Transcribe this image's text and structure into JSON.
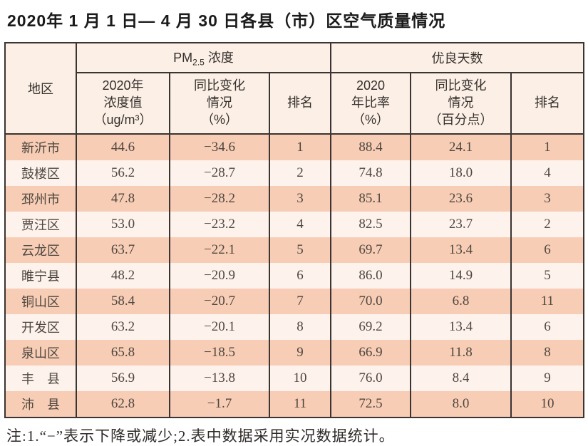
{
  "title": "2020年 1 月 1 日— 4 月 30 日各县（市）区空气质量情况",
  "table": {
    "header": {
      "region": "地区",
      "pm_prefix": "PM",
      "pm_sub": "2.5",
      "pm_suffix": " 浓度",
      "good_days": "优良天数",
      "pm_value": "2020年\n浓度值\n（ug/m³）",
      "pm_change": "同比变化\n情况\n（%）",
      "pm_rank": "排名",
      "good_rate": "2020\n年比率\n（%）",
      "good_change": "同比变化\n情况\n（百分点）",
      "good_rank": "排名"
    },
    "rows": [
      {
        "region": "新沂市",
        "pm_value": "44.6",
        "pm_change": "−34.6",
        "pm_rank": "1",
        "good_rate": "88.4",
        "good_change": "24.1",
        "good_rank": "1"
      },
      {
        "region": "鼓楼区",
        "pm_value": "56.2",
        "pm_change": "−28.7",
        "pm_rank": "2",
        "good_rate": "74.8",
        "good_change": "18.0",
        "good_rank": "4"
      },
      {
        "region": "邳州市",
        "pm_value": "47.8",
        "pm_change": "−28.2",
        "pm_rank": "3",
        "good_rate": "85.1",
        "good_change": "23.6",
        "good_rank": "3"
      },
      {
        "region": "贾汪区",
        "pm_value": "53.0",
        "pm_change": "−23.2",
        "pm_rank": "4",
        "good_rate": "82.5",
        "good_change": "23.7",
        "good_rank": "2"
      },
      {
        "region": "云龙区",
        "pm_value": "63.7",
        "pm_change": "−22.1",
        "pm_rank": "5",
        "good_rate": "69.7",
        "good_change": "13.4",
        "good_rank": "6"
      },
      {
        "region": "睢宁县",
        "pm_value": "48.2",
        "pm_change": "−20.9",
        "pm_rank": "6",
        "good_rate": "86.0",
        "good_change": "14.9",
        "good_rank": "5"
      },
      {
        "region": "铜山区",
        "pm_value": "58.4",
        "pm_change": "−20.7",
        "pm_rank": "7",
        "good_rate": "70.0",
        "good_change": "6.8",
        "good_rank": "11"
      },
      {
        "region": "开发区",
        "pm_value": "63.2",
        "pm_change": "−20.1",
        "pm_rank": "8",
        "good_rate": "69.2",
        "good_change": "13.4",
        "good_rank": "6"
      },
      {
        "region": "泉山区",
        "pm_value": "65.8",
        "pm_change": "−18.5",
        "pm_rank": "9",
        "good_rate": "66.9",
        "good_change": "11.8",
        "good_rank": "8"
      },
      {
        "region": "丰　县",
        "pm_value": "56.9",
        "pm_change": "−13.8",
        "pm_rank": "10",
        "good_rate": "76.0",
        "good_change": "8.4",
        "good_rank": "9"
      },
      {
        "region": "沛　县",
        "pm_value": "62.8",
        "pm_change": "−1.7",
        "pm_rank": "11",
        "good_rate": "72.5",
        "good_change": "8.0",
        "good_rank": "10"
      }
    ]
  },
  "footnote": "注:1.“−”表示下降或减少;2.表中数据采用实况数据统计。",
  "colors": {
    "row_odd": "#f8cdb5",
    "row_even": "#fdf3ec",
    "header_bg": "#fcefe5",
    "border": "#3a3432",
    "text": "#4e4740",
    "title": "#1a1a1a"
  }
}
